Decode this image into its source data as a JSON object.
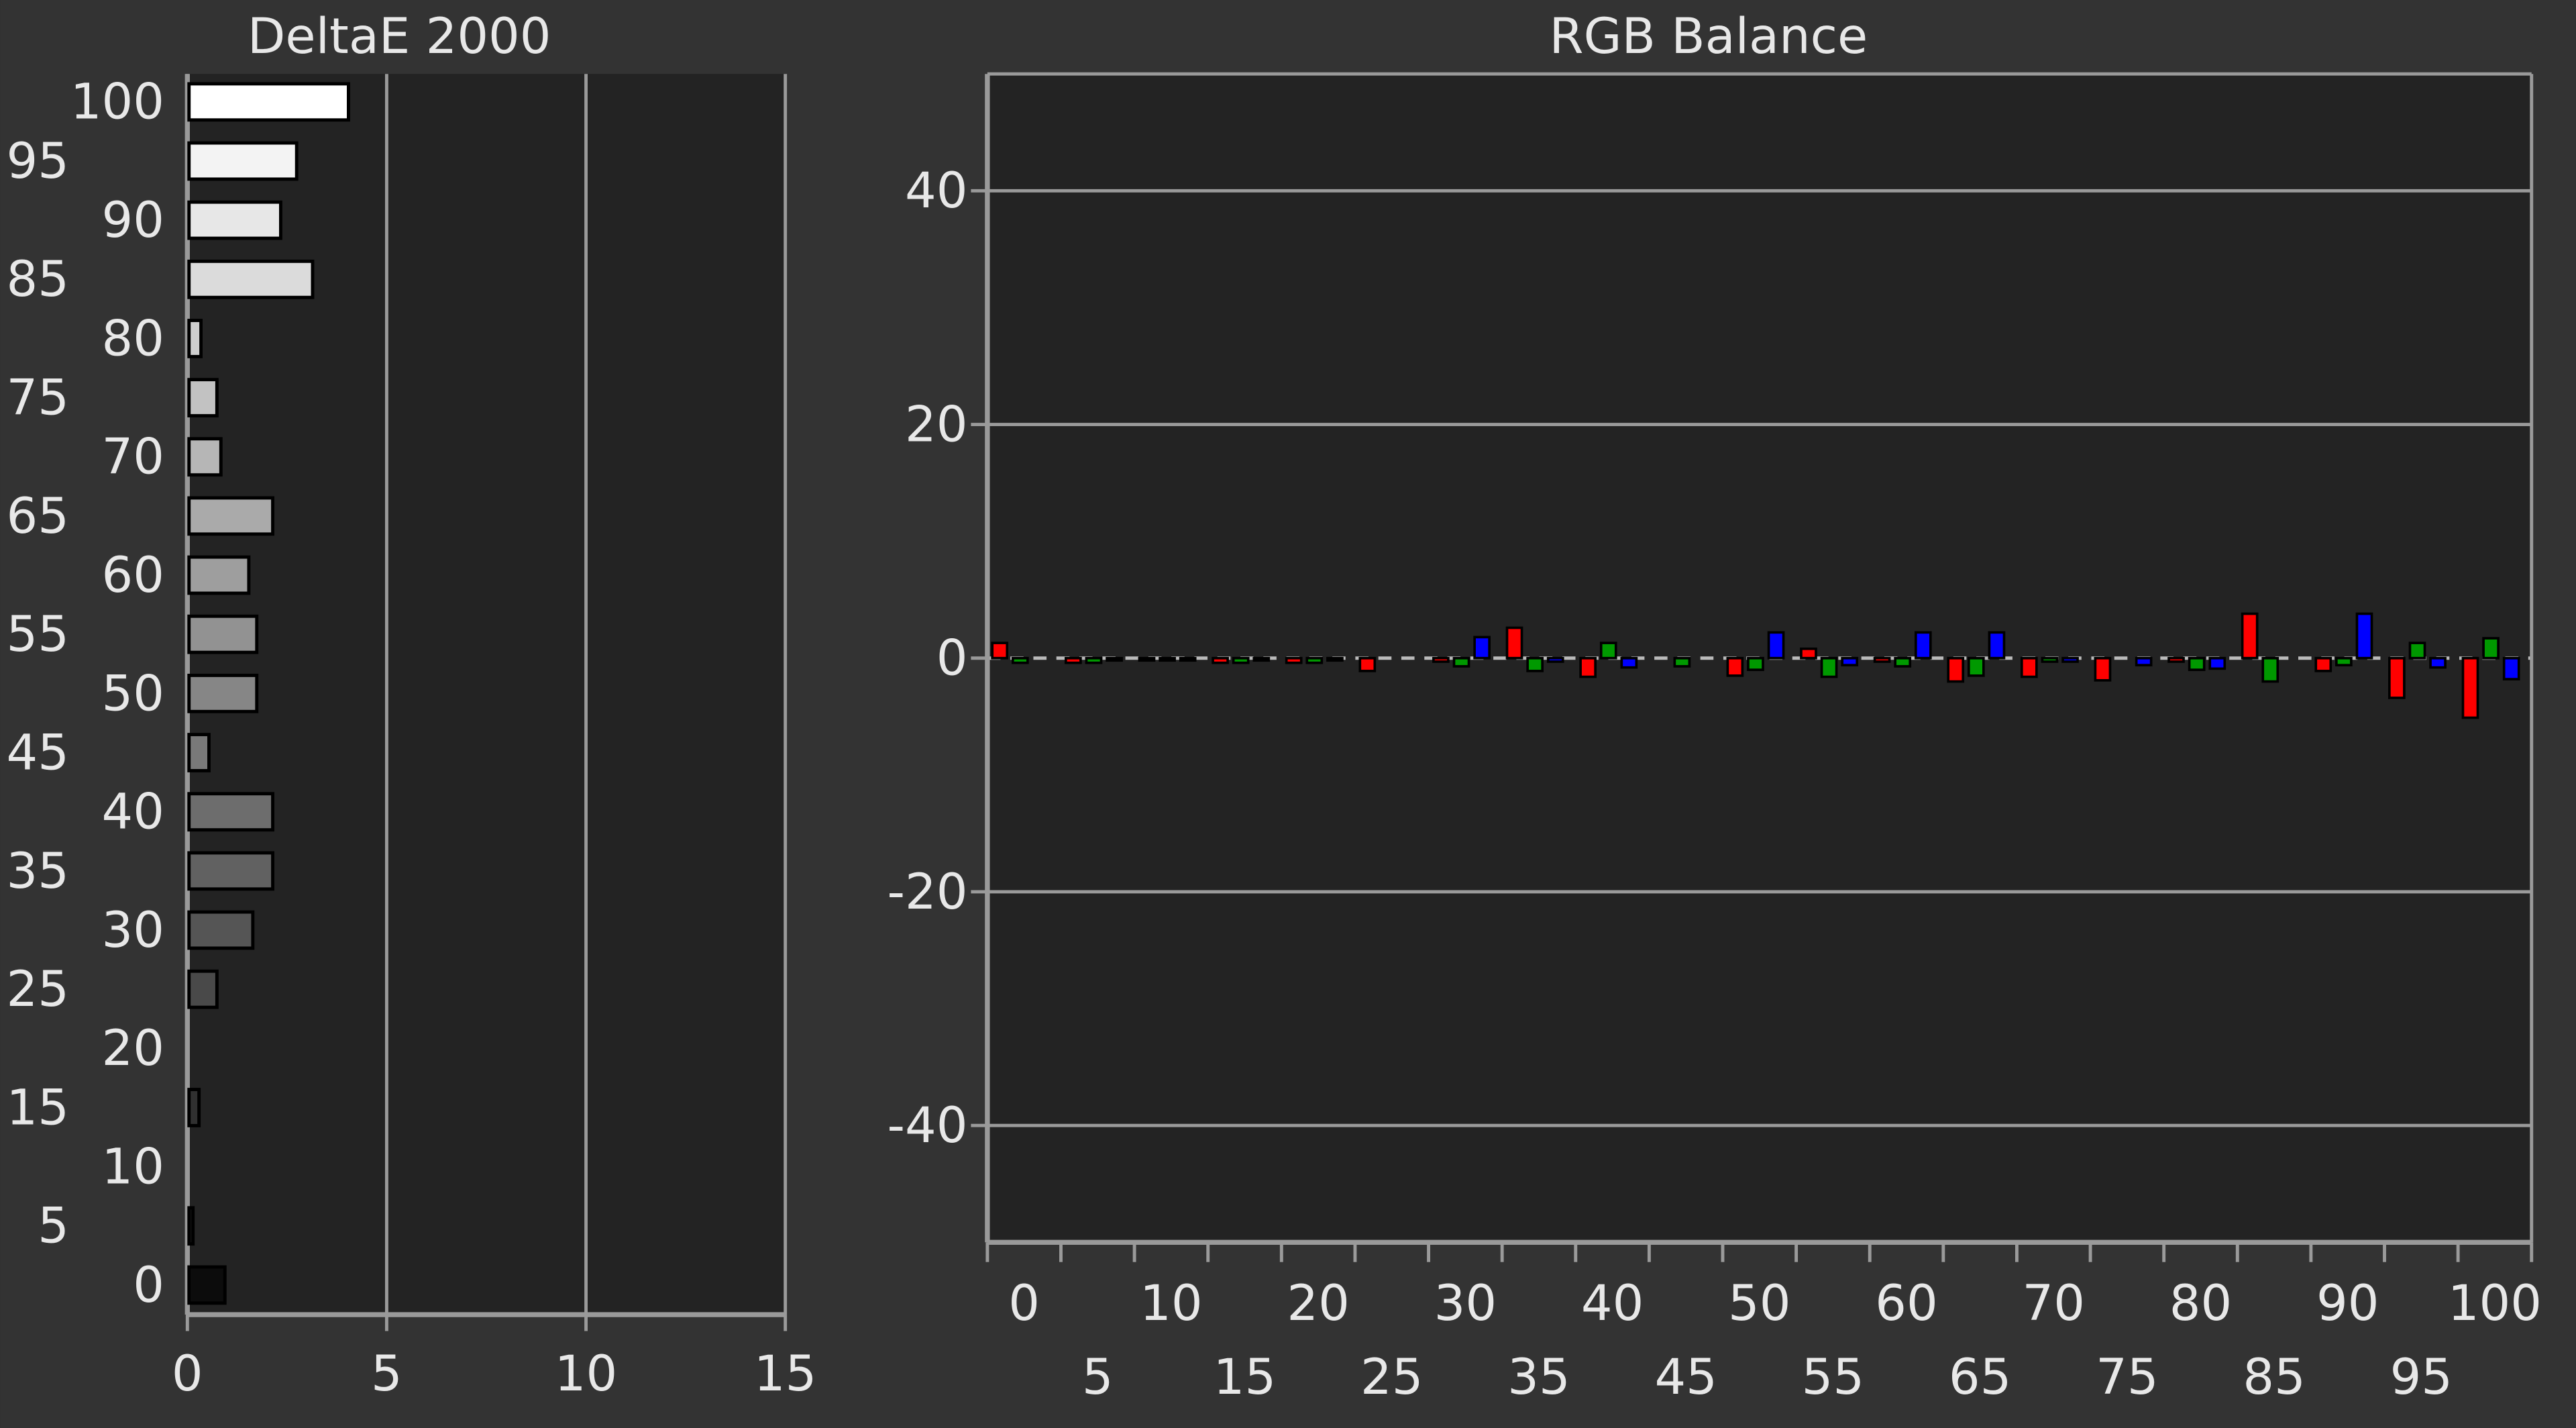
{
  "chart_data": [
    {
      "type": "bar",
      "orientation": "horizontal",
      "title": "DeltaE 2000",
      "categories": [
        "0",
        "5",
        "10",
        "15",
        "20",
        "25",
        "30",
        "35",
        "40",
        "45",
        "50",
        "55",
        "60",
        "65",
        "70",
        "75",
        "80",
        "85",
        "90",
        "95",
        "100"
      ],
      "values": [
        0.9,
        0.1,
        0,
        0.25,
        0,
        0.7,
        1.6,
        2.1,
        2.1,
        0.5,
        1.7,
        1.7,
        1.5,
        2.1,
        0.8,
        0.7,
        0.3,
        3.1,
        2.3,
        2.7,
        4.0
      ],
      "color_scale": [
        "#0c0c0c",
        "#ffffff"
      ],
      "xlim": [
        0,
        15
      ],
      "xticks": [
        0,
        5,
        10,
        15
      ],
      "grid": true
    },
    {
      "type": "bar",
      "orientation": "vertical",
      "title": "RGB Balance",
      "categories": [
        "0",
        "5",
        "10",
        "15",
        "20",
        "25",
        "30",
        "35",
        "40",
        "45",
        "50",
        "55",
        "60",
        "65",
        "70",
        "75",
        "80",
        "85",
        "90",
        "95",
        "100"
      ],
      "series": [
        {
          "color": "#ff0000",
          "values": [
            1.3,
            -0.4,
            -0.2,
            -0.4,
            -0.4,
            -1.1,
            -0.3,
            2.6,
            -1.6,
            0,
            -1.5,
            0.8,
            -0.3,
            -2.0,
            -1.6,
            -1.9,
            -0.3,
            3.8,
            -1.1,
            -3.4,
            -5.1
          ]
        },
        {
          "color": "#009900",
          "values": [
            -0.4,
            -0.4,
            -0.2,
            -0.4,
            -0.4,
            0,
            -0.7,
            -1.1,
            1.3,
            -0.7,
            -1.0,
            -1.6,
            -0.7,
            -1.5,
            -0.3,
            0,
            -1.0,
            -2.0,
            -0.6,
            1.3,
            1.7
          ]
        },
        {
          "color": "#0000ff",
          "values": [
            0,
            -0.2,
            -0.2,
            -0.2,
            -0.2,
            0,
            1.8,
            -0.3,
            -0.8,
            0,
            2.2,
            -0.6,
            2.2,
            2.2,
            -0.3,
            -0.6,
            -0.9,
            0,
            3.8,
            -0.8,
            -1.8
          ]
        }
      ],
      "ylim": [
        -50,
        50
      ],
      "yticks": [
        -40,
        -20,
        0,
        20,
        40
      ],
      "grid": true
    }
  ]
}
